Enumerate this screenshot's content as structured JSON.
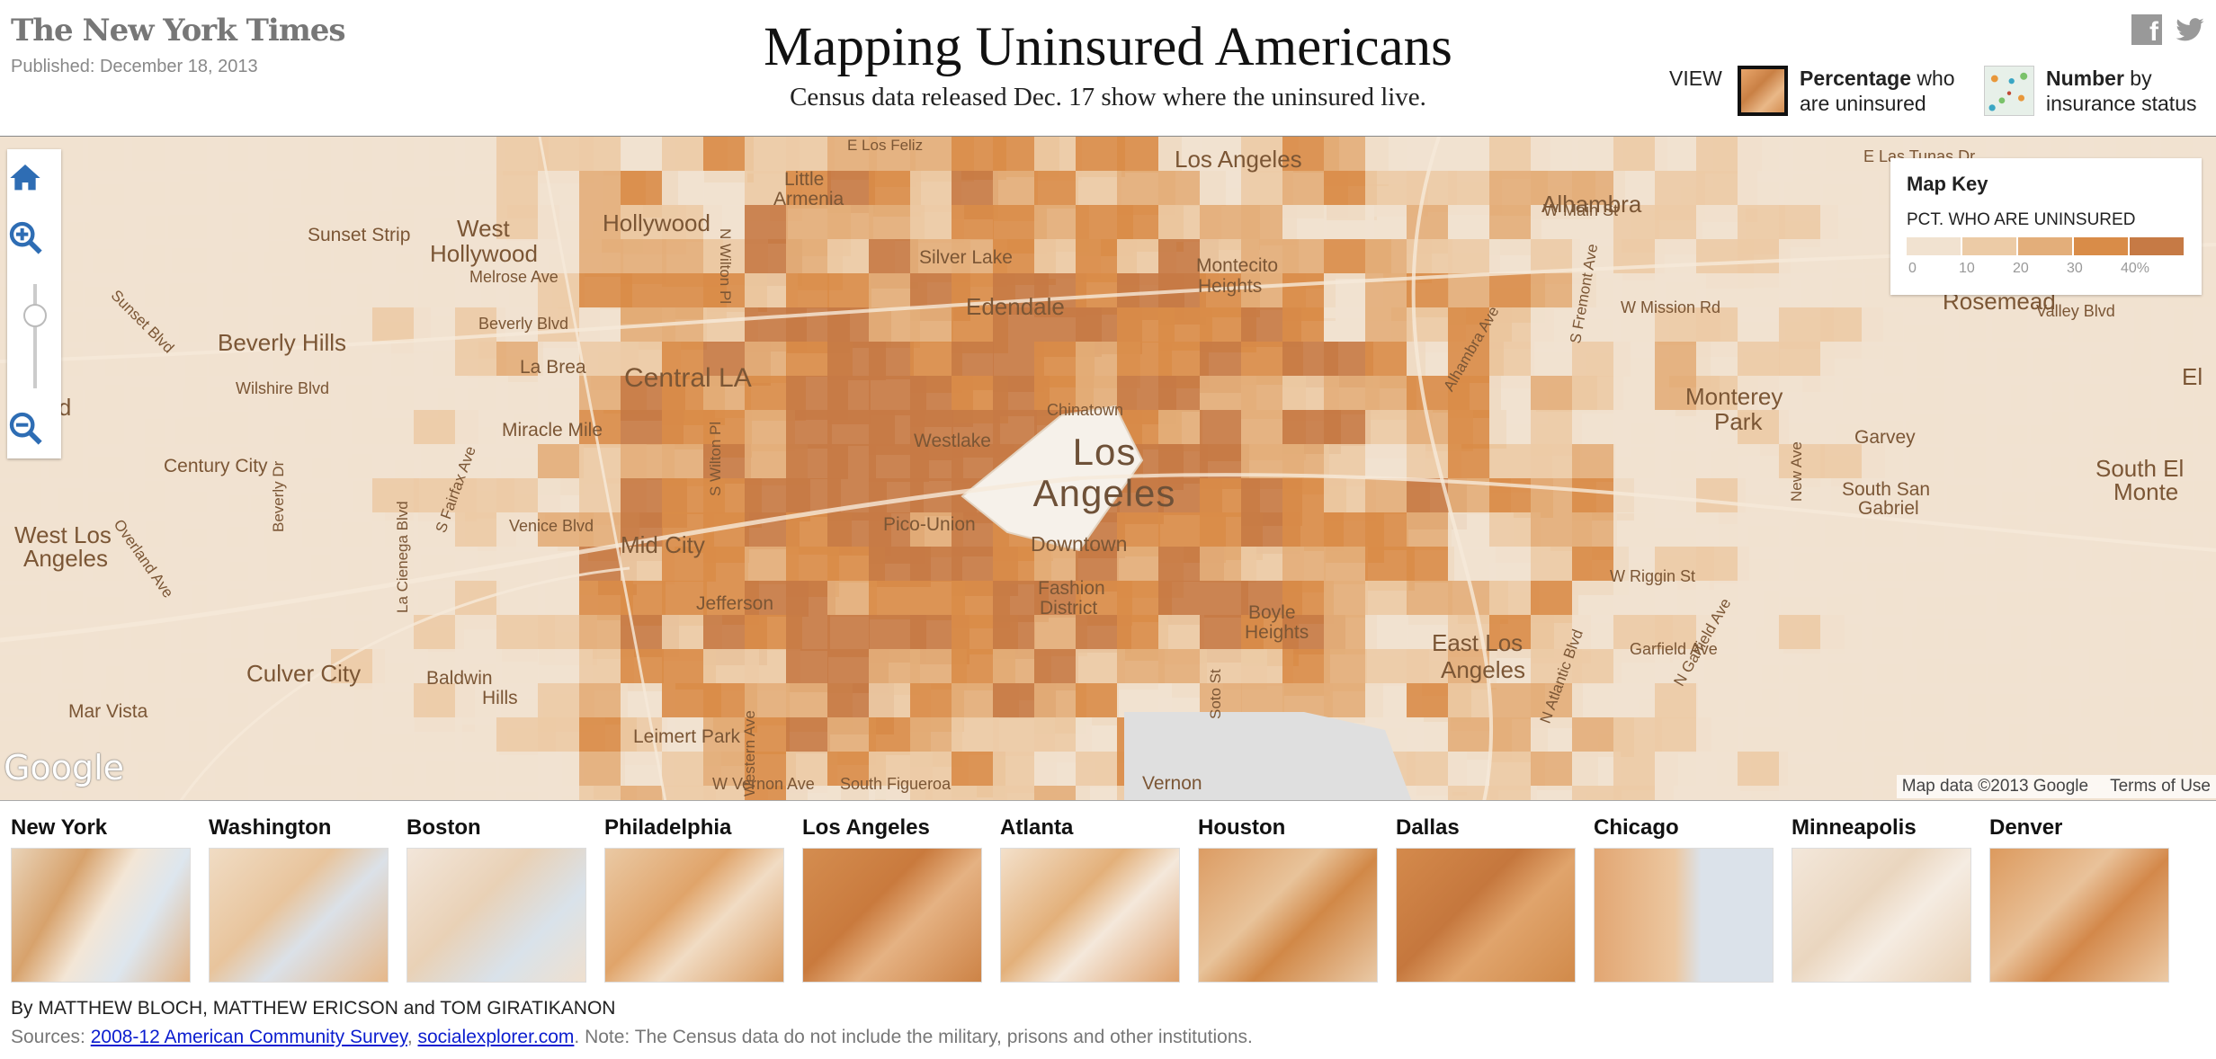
{
  "header": {
    "logo": "The New York Times",
    "published": "Published: December 18, 2013",
    "title": "Mapping Uninsured Americans",
    "subtitle": "Census data released Dec. 17 show where the uninsured live.",
    "view_label": "VIEW",
    "view_options": [
      {
        "bold": "Percentage",
        "rest": " who",
        "line2": "are uninsured",
        "selected": true
      },
      {
        "bold": "Number",
        "rest": " by",
        "line2": "insurance status",
        "selected": false
      }
    ],
    "share_icons": [
      "facebook-icon",
      "twitter-icon"
    ]
  },
  "map": {
    "city_label": "Los Angeles",
    "downtown": "Downtown",
    "places": [
      {
        "text": "West",
        "size": "l"
      },
      {
        "text": "Hollywood",
        "size": "l"
      },
      {
        "text": "Hollywood",
        "size": "l"
      },
      {
        "text": "Sunset Strip",
        "size": "m"
      },
      {
        "text": "Melrose Ave",
        "size": "s"
      },
      {
        "text": "Beverly Hills",
        "size": "l"
      },
      {
        "text": "Wilshire Blvd",
        "size": "s"
      },
      {
        "text": "Beverly Blvd",
        "size": "s"
      },
      {
        "text": "La Brea",
        "size": "m"
      },
      {
        "text": "Central LA",
        "size": "xl"
      },
      {
        "text": "ood",
        "size": "l"
      },
      {
        "text": "Miracle Mile",
        "size": "m"
      },
      {
        "text": "Century City",
        "size": "m"
      },
      {
        "text": "West Los",
        "size": "l"
      },
      {
        "text": "Angeles",
        "size": "l"
      },
      {
        "text": "Venice Blvd",
        "size": "s"
      },
      {
        "text": "Mid City",
        "size": "l"
      },
      {
        "text": "Culver City",
        "size": "l"
      },
      {
        "text": "Baldwin",
        "size": "m"
      },
      {
        "text": "Hills",
        "size": "m"
      },
      {
        "text": "Mar Vista",
        "size": "m"
      },
      {
        "text": "Leimert Park",
        "size": "m"
      },
      {
        "text": "Jefferson",
        "size": "m"
      },
      {
        "text": "Little",
        "size": "m"
      },
      {
        "text": "Armenia",
        "size": "m"
      },
      {
        "text": "Silver Lake",
        "size": "m"
      },
      {
        "text": "Edendale",
        "size": "l"
      },
      {
        "text": "Westlake",
        "size": "m"
      },
      {
        "text": "Pico-Union",
        "size": "m"
      },
      {
        "text": "Chinatown",
        "size": "s"
      },
      {
        "text": "Fashion",
        "size": "m"
      },
      {
        "text": "District",
        "size": "m"
      },
      {
        "text": "Los Angeles",
        "size": "l"
      },
      {
        "text": "Montecito",
        "size": "m"
      },
      {
        "text": "Heights",
        "size": "m"
      },
      {
        "text": "Boyle",
        "size": "m"
      },
      {
        "text": "Heights",
        "size": "m"
      },
      {
        "text": "East Los",
        "size": "l"
      },
      {
        "text": "Angeles",
        "size": "l"
      },
      {
        "text": "Alhambra",
        "size": "l"
      },
      {
        "text": "Rosemead",
        "size": "l"
      },
      {
        "text": "Monterey",
        "size": "l"
      },
      {
        "text": "Park",
        "size": "l"
      },
      {
        "text": "Garvey",
        "size": "m"
      },
      {
        "text": "South San",
        "size": "m"
      },
      {
        "text": "Gabriel",
        "size": "m"
      },
      {
        "text": "South El",
        "size": "l"
      },
      {
        "text": "Monte",
        "size": "l"
      },
      {
        "text": "W Riggin St",
        "size": "s"
      },
      {
        "text": "Vernon",
        "size": "m"
      },
      {
        "text": "W Vernon Ave",
        "size": "s"
      },
      {
        "text": "South Figueroa",
        "size": "s"
      },
      {
        "text": "E Las Tunas Dr",
        "size": "s"
      },
      {
        "text": "El",
        "size": "l"
      },
      {
        "text": "W Main St",
        "size": "s"
      },
      {
        "text": "W Mission Rd",
        "size": "s"
      },
      {
        "text": "Valley Blvd",
        "size": "s"
      },
      {
        "text": "Garfield Ave",
        "size": "s"
      }
    ],
    "streets": [
      {
        "text": "N Wilton Pl"
      },
      {
        "text": "S Wilton Pl"
      },
      {
        "text": "Sunset Blvd"
      },
      {
        "text": "La Cienega Blvd"
      },
      {
        "text": "S Fairfax Ave"
      },
      {
        "text": "Beverly Dr"
      },
      {
        "text": "Overland Ave"
      },
      {
        "text": "S Western Ave"
      },
      {
        "text": "Soto St"
      },
      {
        "text": "N Atlantic Blvd"
      },
      {
        "text": "N Garfield Ave"
      },
      {
        "text": "S Fremont Ave"
      },
      {
        "text": "New Ave"
      },
      {
        "text": "Alhambra Ave"
      },
      {
        "text": "E Los Feliz"
      }
    ],
    "zoom_controls": [
      "home-icon",
      "zoom-in-icon",
      "zoom-slider",
      "zoom-out-icon"
    ],
    "google_logo": "Google",
    "attribution": [
      "Map data ©2013 Google",
      "Terms of Use"
    ]
  },
  "map_key": {
    "title": "Map Key",
    "subtitle": "PCT. WHO ARE UNINSURED",
    "colors": [
      "#f1e2d0",
      "#eccba6",
      "#e3ae7a",
      "#d98c48",
      "#c67a45"
    ],
    "ticks": [
      "0",
      "10",
      "20",
      "30",
      "40%"
    ]
  },
  "cities": [
    {
      "name": "New York"
    },
    {
      "name": "Washington"
    },
    {
      "name": "Boston"
    },
    {
      "name": "Philadelphia"
    },
    {
      "name": "Los Angeles"
    },
    {
      "name": "Atlanta"
    },
    {
      "name": "Houston"
    },
    {
      "name": "Dallas"
    },
    {
      "name": "Chicago"
    },
    {
      "name": "Minneapolis"
    },
    {
      "name": "Denver"
    }
  ],
  "footer": {
    "byline": "By MATTHEW BLOCH, MATTHEW ERICSON and TOM GIRATIKANON",
    "sources_label": "Sources: ",
    "link1": "2008-12 American Community Survey",
    "sep": ", ",
    "link2": "socialexplorer.com",
    "note": ". Note: The Census data do not include the military, prisons and other institutions."
  }
}
